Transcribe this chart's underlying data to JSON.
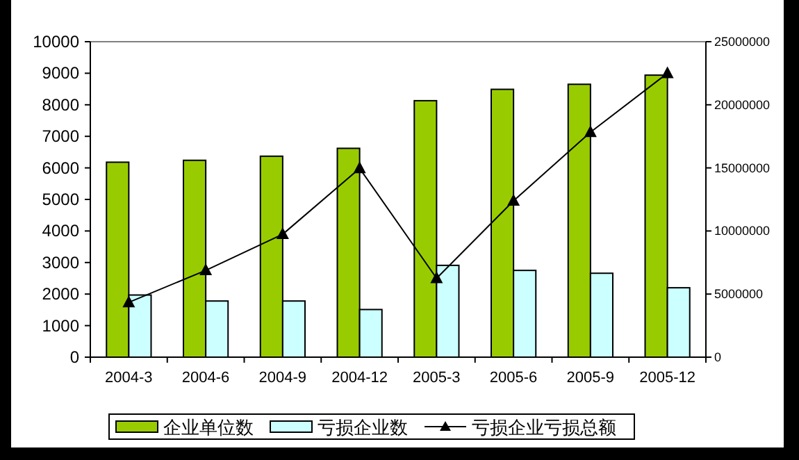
{
  "chart_data": {
    "type": "bar",
    "categories": [
      "2004-3",
      "2004-6",
      "2004-9",
      "2004-12",
      "2005-3",
      "2005-6",
      "2005-9",
      "2005-12"
    ],
    "series": [
      {
        "name": "企业单位数",
        "color": "#99cc00",
        "values": [
          6180,
          6240,
          6370,
          6620,
          8130,
          8490,
          8650,
          8940
        ]
      },
      {
        "name": "亏损企业数",
        "color": "#ccffff",
        "values": [
          1970,
          1780,
          1780,
          1510,
          2910,
          2750,
          2660,
          2200
        ]
      },
      {
        "name": "亏损企业亏损总额",
        "type": "line",
        "axis": "y2",
        "color": "#000000",
        "marker": "triangle",
        "values": [
          4340000,
          6880000,
          9740000,
          14960000,
          6250000,
          12390000,
          17830000,
          22500000
        ]
      }
    ],
    "ylim": [
      0,
      10000
    ],
    "yticks": [
      0,
      1000,
      2000,
      3000,
      4000,
      5000,
      6000,
      7000,
      8000,
      9000,
      10000
    ],
    "y2lim": [
      0,
      25000000
    ],
    "y2ticks": [
      0,
      5000000,
      10000000,
      15000000,
      20000000,
      25000000
    ],
    "legend": "bottom",
    "grid": false
  }
}
